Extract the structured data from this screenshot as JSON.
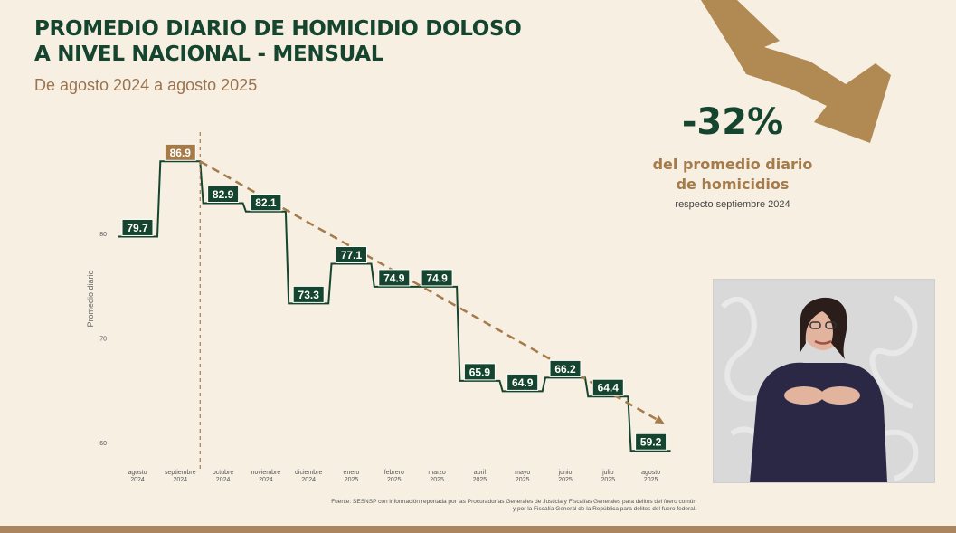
{
  "header": {
    "title_line1": "PROMEDIO DIARIO DE HOMICIDIO DOLOSO",
    "title_line2": "A NIVEL NACIONAL - MENSUAL",
    "subtitle": "De agosto 2024 a agosto 2025"
  },
  "stat": {
    "percent": "-32%",
    "line1": "del promedio diario",
    "line2": "de homicidios",
    "line3": "respecto septiembre 2024"
  },
  "source": {
    "line1": "Fuente: SESNSP con información reportada por las Procuradurías Generales de Justicia y Fiscalías Generales para delitos del fuero común",
    "line2": "y por la Fiscalía General de la República para delitos del fuero federal."
  },
  "icons": [
    "down-trend-arrow-icon"
  ],
  "colors": {
    "background": "#f7efe2",
    "title": "#15452f",
    "step_line": "#15452f",
    "highlight_label": "#a57b4a",
    "trend_line": "#a57b4a",
    "arrow": "#b08a52",
    "bottom_bar": "#a9865f"
  },
  "chart_data": {
    "type": "line",
    "style": "step",
    "categories": [
      [
        "agosto",
        "2024"
      ],
      [
        "septiembre",
        "2024"
      ],
      [
        "octubre",
        "2024"
      ],
      [
        "noviembre",
        "2024"
      ],
      [
        "diciembre",
        "2024"
      ],
      [
        "enero",
        "2025"
      ],
      [
        "febrero",
        "2025"
      ],
      [
        "marzo",
        "2025"
      ],
      [
        "abril",
        "2025"
      ],
      [
        "mayo",
        "2025"
      ],
      [
        "junio",
        "2025"
      ],
      [
        "julio",
        "2025"
      ],
      [
        "agosto",
        "2025"
      ]
    ],
    "values": [
      79.7,
      86.9,
      82.9,
      82.1,
      73.3,
      77.1,
      74.9,
      74.9,
      65.9,
      64.9,
      66.2,
      64.4,
      59.2
    ],
    "data_labels": [
      "79.7",
      "86.9",
      "82.9",
      "82.1",
      "73.3",
      "77.1",
      "74.9",
      "74.9",
      "65.9",
      "64.9",
      "66.2",
      "64.4",
      "59.2"
    ],
    "highlight_index": 1,
    "trend_line": {
      "from_index": 1,
      "to_index": 12,
      "style": "dashed",
      "arrow": true
    },
    "reference_line": {
      "at_index": 1,
      "style": "dashed-vertical"
    },
    "ylabel": "Promedio diario",
    "xlabel": "",
    "yticks": [
      60,
      70,
      80
    ],
    "ylim": [
      58,
      90
    ],
    "grid": false,
    "legend": "none"
  }
}
